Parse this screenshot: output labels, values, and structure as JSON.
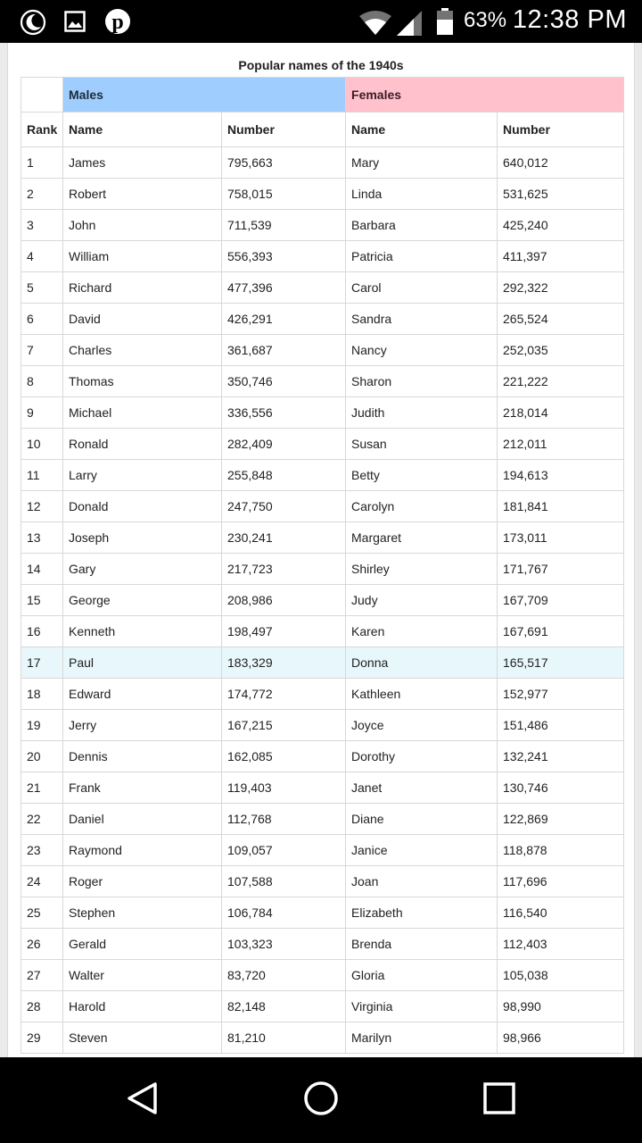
{
  "status_bar": {
    "icons": [
      "moon-icon",
      "image-icon",
      "pinterest-icon",
      "wifi-icon",
      "signal-icon",
      "battery-icon"
    ],
    "battery": "63%",
    "time": "12:38 PM"
  },
  "table": {
    "caption": "Popular names of the 1940s",
    "groups": {
      "males": "Males",
      "females": "Females"
    },
    "columns": [
      "Rank",
      "Name",
      "Number",
      "Name",
      "Number"
    ],
    "highlight_color": "#e8f7fb",
    "males_color": "#9fcdfd",
    "females_color": "#ffc1cc",
    "rows": [
      [
        "1",
        "James",
        "795,663",
        "Mary",
        "640,012"
      ],
      [
        "2",
        "Robert",
        "758,015",
        "Linda",
        "531,625"
      ],
      [
        "3",
        "John",
        "711,539",
        "Barbara",
        "425,240"
      ],
      [
        "4",
        "William",
        "556,393",
        "Patricia",
        "411,397"
      ],
      [
        "5",
        "Richard",
        "477,396",
        "Carol",
        "292,322"
      ],
      [
        "6",
        "David",
        "426,291",
        "Sandra",
        "265,524"
      ],
      [
        "7",
        "Charles",
        "361,687",
        "Nancy",
        "252,035"
      ],
      [
        "8",
        "Thomas",
        "350,746",
        "Sharon",
        "221,222"
      ],
      [
        "9",
        "Michael",
        "336,556",
        "Judith",
        "218,014"
      ],
      [
        "10",
        "Ronald",
        "282,409",
        "Susan",
        "212,011"
      ],
      [
        "11",
        "Larry",
        "255,848",
        "Betty",
        "194,613"
      ],
      [
        "12",
        "Donald",
        "247,750",
        "Carolyn",
        "181,841"
      ],
      [
        "13",
        "Joseph",
        "230,241",
        "Margaret",
        "173,011"
      ],
      [
        "14",
        "Gary",
        "217,723",
        "Shirley",
        "171,767"
      ],
      [
        "15",
        "George",
        "208,986",
        "Judy",
        "167,709"
      ],
      [
        "16",
        "Kenneth",
        "198,497",
        "Karen",
        "167,691"
      ],
      [
        "17",
        "Paul",
        "183,329",
        "Donna",
        "165,517"
      ],
      [
        "18",
        "Edward",
        "174,772",
        "Kathleen",
        "152,977"
      ],
      [
        "19",
        "Jerry",
        "167,215",
        "Joyce",
        "151,486"
      ],
      [
        "20",
        "Dennis",
        "162,085",
        "Dorothy",
        "132,241"
      ],
      [
        "21",
        "Frank",
        "119,403",
        "Janet",
        "130,746"
      ],
      [
        "22",
        "Daniel",
        "112,768",
        "Diane",
        "122,869"
      ],
      [
        "23",
        "Raymond",
        "109,057",
        "Janice",
        "118,878"
      ],
      [
        "24",
        "Roger",
        "107,588",
        "Joan",
        "117,696"
      ],
      [
        "25",
        "Stephen",
        "106,784",
        "Elizabeth",
        "116,540"
      ],
      [
        "26",
        "Gerald",
        "103,323",
        "Brenda",
        "112,403"
      ],
      [
        "27",
        "Walter",
        "83,720",
        "Gloria",
        "105,038"
      ],
      [
        "28",
        "Harold",
        "82,148",
        "Virginia",
        "98,990"
      ],
      [
        "29",
        "Steven",
        "81,210",
        "Marilyn",
        "98,966"
      ]
    ]
  },
  "nav_bar": {
    "buttons": [
      "back-icon",
      "home-icon",
      "recents-icon"
    ]
  }
}
